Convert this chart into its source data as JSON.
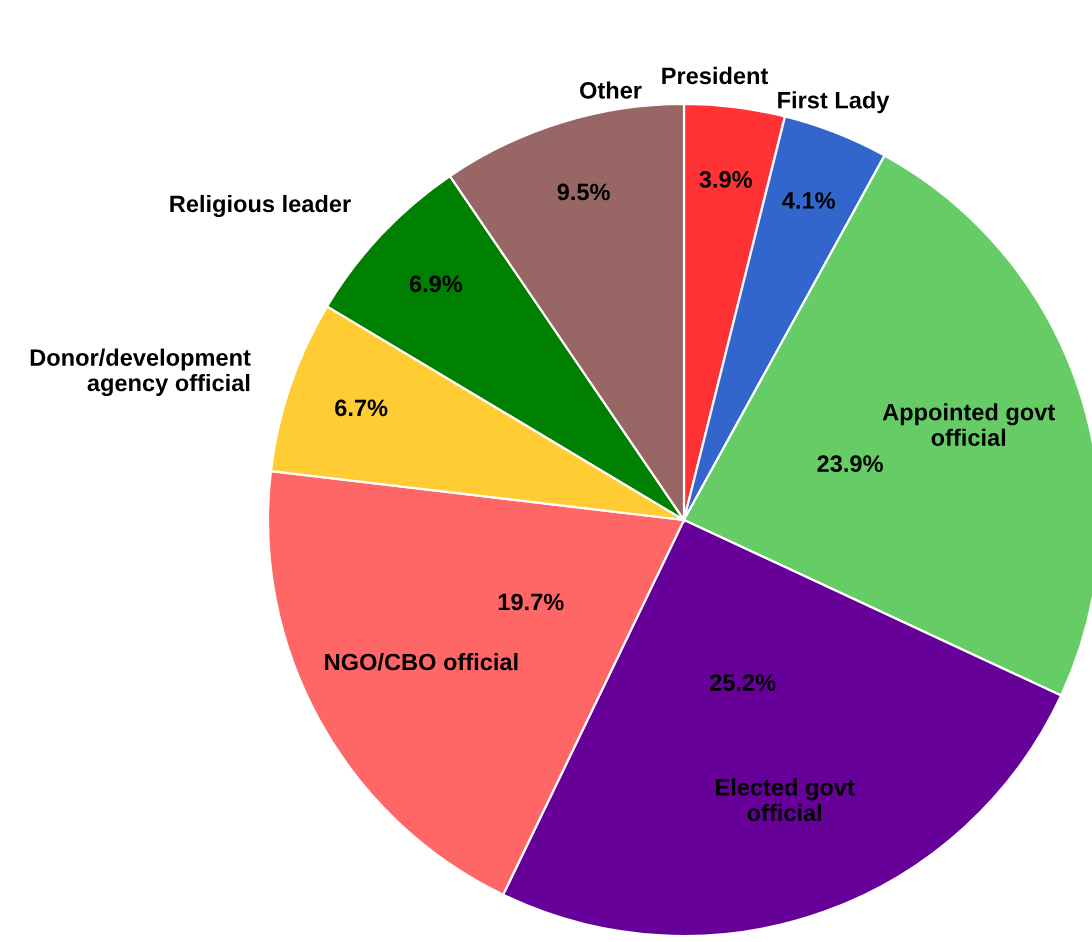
{
  "chart_data": {
    "type": "pie",
    "categories": [
      "President",
      "First Lady",
      "Appointed govt official",
      "Elected govt official",
      "NGO/CBO official",
      "Donor/development agency official",
      "Religious leader",
      "Other"
    ],
    "values": [
      3.9,
      4.1,
      23.9,
      25.2,
      19.7,
      6.7,
      6.9,
      9.5
    ],
    "colors": [
      "#ff3333",
      "#3366cc",
      "#66cc66",
      "#660099",
      "#ff6666",
      "#ffcc33",
      "#008000",
      "#996666"
    ],
    "value_labels": [
      "3.9%",
      "4.1%",
      "23.9%",
      "25.2%",
      "19.7%",
      "6.7%",
      "6.9%",
      "9.5%"
    ]
  }
}
